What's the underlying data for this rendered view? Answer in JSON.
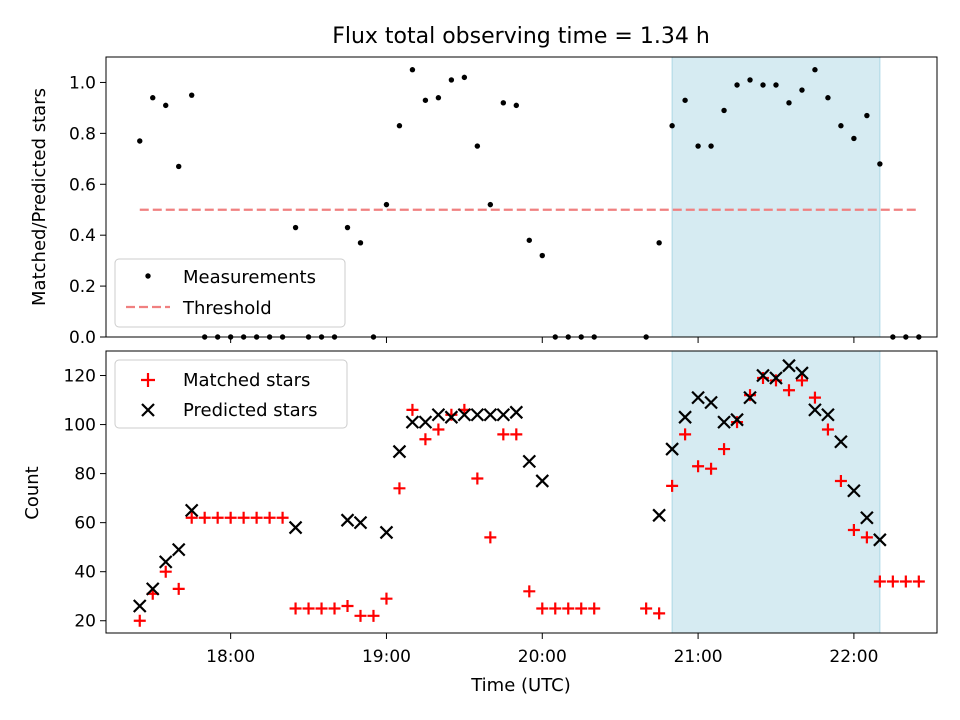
{
  "chart_data": {
    "type": "scatter",
    "title": "Flux total observing time = 1.34 h",
    "xlabel": "Time (UTC)",
    "x_ticks": [
      "18:00",
      "19:00",
      "20:00",
      "21:00",
      "22:00"
    ],
    "shaded_interval": [
      "20:50",
      "22:10"
    ],
    "shade_color": "#add8e6",
    "panels": [
      {
        "ylabel": "Matched/Predicted stars",
        "ylim": [
          0,
          1.1
        ],
        "yticks": [
          "0.0",
          "0.2",
          "0.4",
          "0.6",
          "0.8",
          "1.0"
        ],
        "legend_position": "lower-left",
        "series": [
          {
            "name": "Measurements",
            "marker": "dot",
            "color": "#000000",
            "points": [
              [
                "17:25",
                0.77
              ],
              [
                "17:30",
                0.94
              ],
              [
                "17:35",
                0.91
              ],
              [
                "17:40",
                0.67
              ],
              [
                "17:45",
                0.95
              ],
              [
                "17:50",
                0.0
              ],
              [
                "17:55",
                0.0
              ],
              [
                "18:00",
                0.0
              ],
              [
                "18:05",
                0.0
              ],
              [
                "18:10",
                0.0
              ],
              [
                "18:15",
                0.0
              ],
              [
                "18:20",
                0.0
              ],
              [
                "18:25",
                0.43
              ],
              [
                "18:30",
                0.0
              ],
              [
                "18:35",
                0.0
              ],
              [
                "18:40",
                0.0
              ],
              [
                "18:45",
                0.43
              ],
              [
                "18:50",
                0.37
              ],
              [
                "18:55",
                0.0
              ],
              [
                "19:00",
                0.52
              ],
              [
                "19:05",
                0.83
              ],
              [
                "19:10",
                1.05
              ],
              [
                "19:15",
                0.93
              ],
              [
                "19:20",
                0.94
              ],
              [
                "19:25",
                1.01
              ],
              [
                "19:30",
                1.02
              ],
              [
                "19:35",
                0.75
              ],
              [
                "19:40",
                0.52
              ],
              [
                "19:45",
                0.92
              ],
              [
                "19:50",
                0.91
              ],
              [
                "19:55",
                0.38
              ],
              [
                "20:00",
                0.32
              ],
              [
                "20:05",
                0.0
              ],
              [
                "20:10",
                0.0
              ],
              [
                "20:15",
                0.0
              ],
              [
                "20:20",
                0.0
              ],
              [
                "20:40",
                0.0
              ],
              [
                "20:45",
                0.37
              ],
              [
                "20:50",
                0.83
              ],
              [
                "20:55",
                0.93
              ],
              [
                "21:00",
                0.75
              ],
              [
                "21:05",
                0.75
              ],
              [
                "21:10",
                0.89
              ],
              [
                "21:15",
                0.99
              ],
              [
                "21:20",
                1.01
              ],
              [
                "21:25",
                0.99
              ],
              [
                "21:30",
                0.99
              ],
              [
                "21:35",
                0.92
              ],
              [
                "21:40",
                0.97
              ],
              [
                "21:45",
                1.05
              ],
              [
                "21:50",
                0.94
              ],
              [
                "21:55",
                0.83
              ],
              [
                "22:00",
                0.78
              ],
              [
                "22:05",
                0.87
              ],
              [
                "22:10",
                0.68
              ],
              [
                "22:15",
                0.0
              ],
              [
                "22:20",
                0.0
              ],
              [
                "22:25",
                0.0
              ]
            ]
          },
          {
            "name": "Threshold",
            "marker": "dashed-line",
            "color": "#f08080",
            "points": [
              [
                "17:25",
                0.5
              ],
              [
                "22:25",
                0.5
              ]
            ]
          }
        ]
      },
      {
        "ylabel": "Count",
        "ylim": [
          15,
          130
        ],
        "yticks": [
          "20",
          "40",
          "60",
          "80",
          "100",
          "120"
        ],
        "legend_position": "upper-left",
        "series": [
          {
            "name": "Matched stars",
            "marker": "plus",
            "color": "#ff0000",
            "points": [
              [
                "17:25",
                20
              ],
              [
                "17:30",
                31
              ],
              [
                "17:35",
                40
              ],
              [
                "17:40",
                33
              ],
              [
                "17:45",
                62
              ],
              [
                "17:50",
                62
              ],
              [
                "17:55",
                62
              ],
              [
                "18:00",
                62
              ],
              [
                "18:05",
                62
              ],
              [
                "18:10",
                62
              ],
              [
                "18:15",
                62
              ],
              [
                "18:20",
                62
              ],
              [
                "18:25",
                25
              ],
              [
                "18:30",
                25
              ],
              [
                "18:35",
                25
              ],
              [
                "18:40",
                25
              ],
              [
                "18:45",
                26
              ],
              [
                "18:50",
                22
              ],
              [
                "18:55",
                22
              ],
              [
                "19:00",
                29
              ],
              [
                "19:05",
                74
              ],
              [
                "19:10",
                106
              ],
              [
                "19:15",
                94
              ],
              [
                "19:20",
                98
              ],
              [
                "19:25",
                104
              ],
              [
                "19:30",
                106
              ],
              [
                "19:35",
                78
              ],
              [
                "19:40",
                54
              ],
              [
                "19:45",
                96
              ],
              [
                "19:50",
                96
              ],
              [
                "19:55",
                32
              ],
              [
                "20:00",
                25
              ],
              [
                "20:05",
                25
              ],
              [
                "20:10",
                25
              ],
              [
                "20:15",
                25
              ],
              [
                "20:20",
                25
              ],
              [
                "20:40",
                25
              ],
              [
                "20:45",
                23
              ],
              [
                "20:50",
                75
              ],
              [
                "20:55",
                96
              ],
              [
                "21:00",
                83
              ],
              [
                "21:05",
                82
              ],
              [
                "21:10",
                90
              ],
              [
                "21:15",
                101
              ],
              [
                "21:20",
                112
              ],
              [
                "21:25",
                119
              ],
              [
                "21:30",
                118
              ],
              [
                "21:35",
                114
              ],
              [
                "21:40",
                118
              ],
              [
                "21:45",
                111
              ],
              [
                "21:50",
                98
              ],
              [
                "21:55",
                77
              ],
              [
                "22:00",
                57
              ],
              [
                "22:05",
                54
              ],
              [
                "22:10",
                36
              ],
              [
                "22:15",
                36
              ],
              [
                "22:20",
                36
              ],
              [
                "22:25",
                36
              ]
            ]
          },
          {
            "name": "Predicted stars",
            "marker": "x",
            "color": "#000000",
            "points": [
              [
                "17:25",
                26
              ],
              [
                "17:30",
                33
              ],
              [
                "17:35",
                44
              ],
              [
                "17:40",
                49
              ],
              [
                "17:45",
                65
              ],
              [
                "18:25",
                58
              ],
              [
                "18:45",
                61
              ],
              [
                "18:50",
                60
              ],
              [
                "19:00",
                56
              ],
              [
                "19:05",
                89
              ],
              [
                "19:10",
                101
              ],
              [
                "19:15",
                101
              ],
              [
                "19:20",
                104
              ],
              [
                "19:25",
                103
              ],
              [
                "19:30",
                104
              ],
              [
                "19:35",
                104
              ],
              [
                "19:40",
                104
              ],
              [
                "19:45",
                104
              ],
              [
                "19:50",
                105
              ],
              [
                "19:55",
                85
              ],
              [
                "20:00",
                77
              ],
              [
                "20:45",
                63
              ],
              [
                "20:50",
                90
              ],
              [
                "20:55",
                103
              ],
              [
                "21:00",
                111
              ],
              [
                "21:05",
                109
              ],
              [
                "21:10",
                101
              ],
              [
                "21:15",
                102
              ],
              [
                "21:20",
                111
              ],
              [
                "21:25",
                120
              ],
              [
                "21:30",
                119
              ],
              [
                "21:35",
                124
              ],
              [
                "21:40",
                121
              ],
              [
                "21:45",
                106
              ],
              [
                "21:50",
                104
              ],
              [
                "21:55",
                93
              ],
              [
                "22:00",
                73
              ],
              [
                "22:05",
                62
              ],
              [
                "22:10",
                53
              ]
            ]
          }
        ]
      }
    ]
  }
}
